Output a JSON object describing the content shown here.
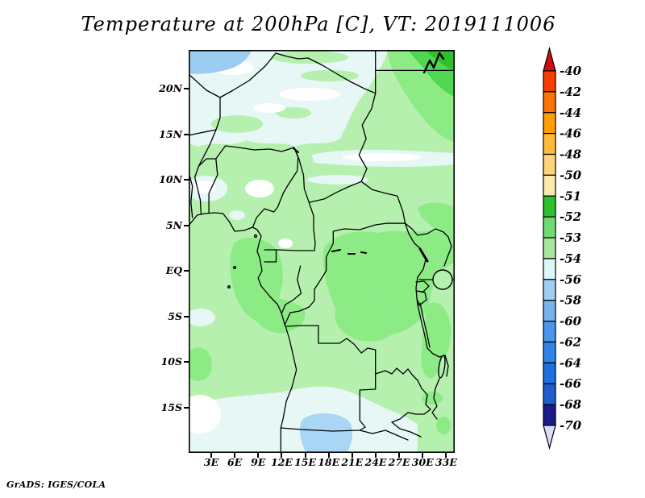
{
  "title": "Temperature at 200hPa [C], VT: 2019111006",
  "credit": "GrADS: IGES/COLA",
  "axes": {
    "lat_labels": [
      "20N",
      "15N",
      "10N",
      "5N",
      "EQ",
      "5S",
      "10S",
      "15S"
    ],
    "lon_labels": [
      "3E",
      "6E",
      "9E",
      "12E",
      "15E",
      "18E",
      "21E",
      "24E",
      "27E",
      "30E",
      "33E"
    ]
  },
  "colorbar": {
    "labels": [
      "-40",
      "-42",
      "-44",
      "-46",
      "-48",
      "-50",
      "-51",
      "-52",
      "-53",
      "-54",
      "-56",
      "-58",
      "-60",
      "-62",
      "-64",
      "-66",
      "-68",
      "-70"
    ],
    "top_arrow_color": "#d20d0d",
    "bottom_arrow_color": "#dddcf8",
    "segment_colors": [
      "#f93e04",
      "#fd7404",
      "#fe9e02",
      "#feba38",
      "#fdd478",
      "#faeaae",
      "#2fbf2f",
      "#72da72",
      "#a6e69e",
      "#dcf8fa",
      "#a0cdf2",
      "#78b2ef",
      "#4a96eb",
      "#2f85e8",
      "#1f6fdf",
      "#1e5ecf",
      "#1b1b8a"
    ],
    "outline_color": "#000000"
  },
  "map_palette": {
    "lightGreen": "#b5f0ae",
    "paleCyan": "#e6f7f5",
    "whitePatch": "#ffffff",
    "mediumGreen": "#8deb86",
    "green": "#4fd84f",
    "darkGreen": "#2fbf2f",
    "blueNorth": "#9bcdf3",
    "blueSouth": "#a8d6f4",
    "border": "#000000"
  },
  "chart_data": {
    "type": "heatmap",
    "subtype": "filled_contour_map",
    "title": "Temperature at 200hPa [C], VT: 2019111006",
    "variable": "Temperature",
    "pressure_level": "200hPa",
    "units": "C",
    "valid_time": "2019111006",
    "renderer_credit": "GrADS: IGES/COLA",
    "lon_range_deg_east": [
      0,
      34
    ],
    "lat_range_deg_north": [
      -20,
      24
    ],
    "lon_ticks": [
      "3E",
      "6E",
      "9E",
      "12E",
      "15E",
      "18E",
      "21E",
      "24E",
      "27E",
      "30E",
      "33E"
    ],
    "lat_ticks": [
      "20N",
      "15N",
      "10N",
      "5N",
      "EQ",
      "5S",
      "10S",
      "15S"
    ],
    "contour_levels": [
      -70,
      -68,
      -66,
      -64,
      -62,
      -60,
      -58,
      -56,
      -54,
      -53,
      -52,
      -51,
      -50,
      -48,
      -46,
      -44,
      -42,
      -40
    ],
    "legend_position": "right",
    "grid": false,
    "regions": [
      {
        "area": "most of domain, 5N-12S",
        "value_range_C": [
          -54,
          -53
        ]
      },
      {
        "area": "northern band, 13N-24N",
        "value_range_C": [
          -56,
          -54
        ]
      },
      {
        "area": "northwest corner, 0E-8E / 21N-24N",
        "value_range_C": [
          -58,
          -56
        ]
      },
      {
        "area": "northeast corner, 25E-34E / 20N-24N (warmest)",
        "value_range_C": [
          -52,
          -51
        ]
      },
      {
        "area": "east-central, 17E-30E / 5N-6S",
        "value_range_C": [
          -53,
          -52
        ]
      },
      {
        "area": "southern band, 12S-20S",
        "value_range_C": [
          -56,
          -54
        ]
      },
      {
        "area": "south-central patch, 14E-20E / 16S-20S",
        "value_range_C": [
          -58,
          -56
        ]
      }
    ]
  }
}
